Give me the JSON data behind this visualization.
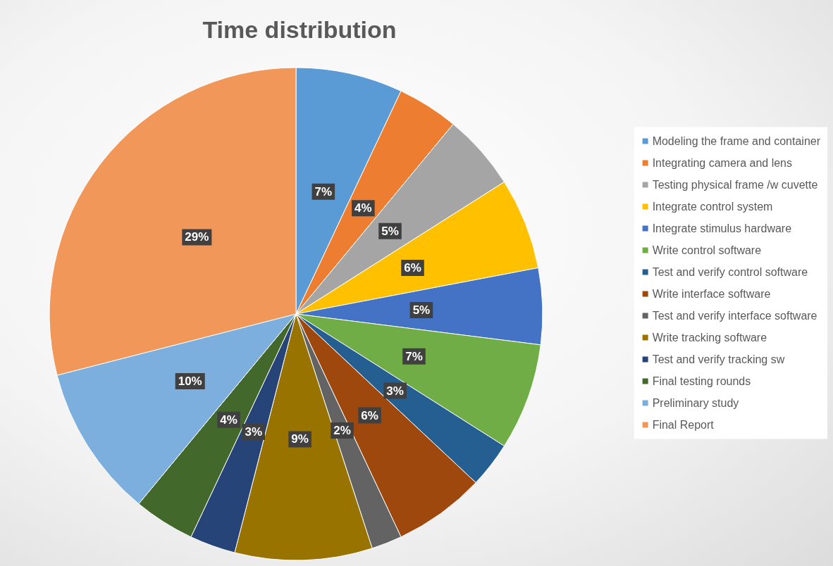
{
  "chart_data": {
    "type": "pie",
    "title": "Time distribution",
    "categories": [
      "Modeling the frame and container",
      "Integrating camera and lens",
      "Testing physical frame /w cuvette",
      "Integrate control system",
      "Integrate stimulus hardware",
      "Write control software",
      "Test and verify control software",
      "Write interface software",
      "Test and verify interface software",
      "Write tracking software",
      "Test and verify tracking sw",
      "Final testing rounds",
      "Preliminary study",
      "Final Report"
    ],
    "values": [
      7,
      4,
      5,
      6,
      5,
      7,
      3,
      6,
      2,
      9,
      3,
      4,
      10,
      29
    ],
    "colors": [
      "#5b9bd5",
      "#ed7d31",
      "#a5a5a5",
      "#ffc000",
      "#4472c4",
      "#70ad47",
      "#255e91",
      "#9e480e",
      "#636363",
      "#997300",
      "#264478",
      "#43682b",
      "#7cafdd",
      "#f1975a"
    ],
    "value_labels": [
      "7%",
      "4%",
      "5%",
      "6%",
      "5%",
      "7%",
      "3%",
      "6%",
      "2%",
      "9%",
      "3%",
      "4%",
      "10%",
      "29%"
    ],
    "legend": "right"
  }
}
